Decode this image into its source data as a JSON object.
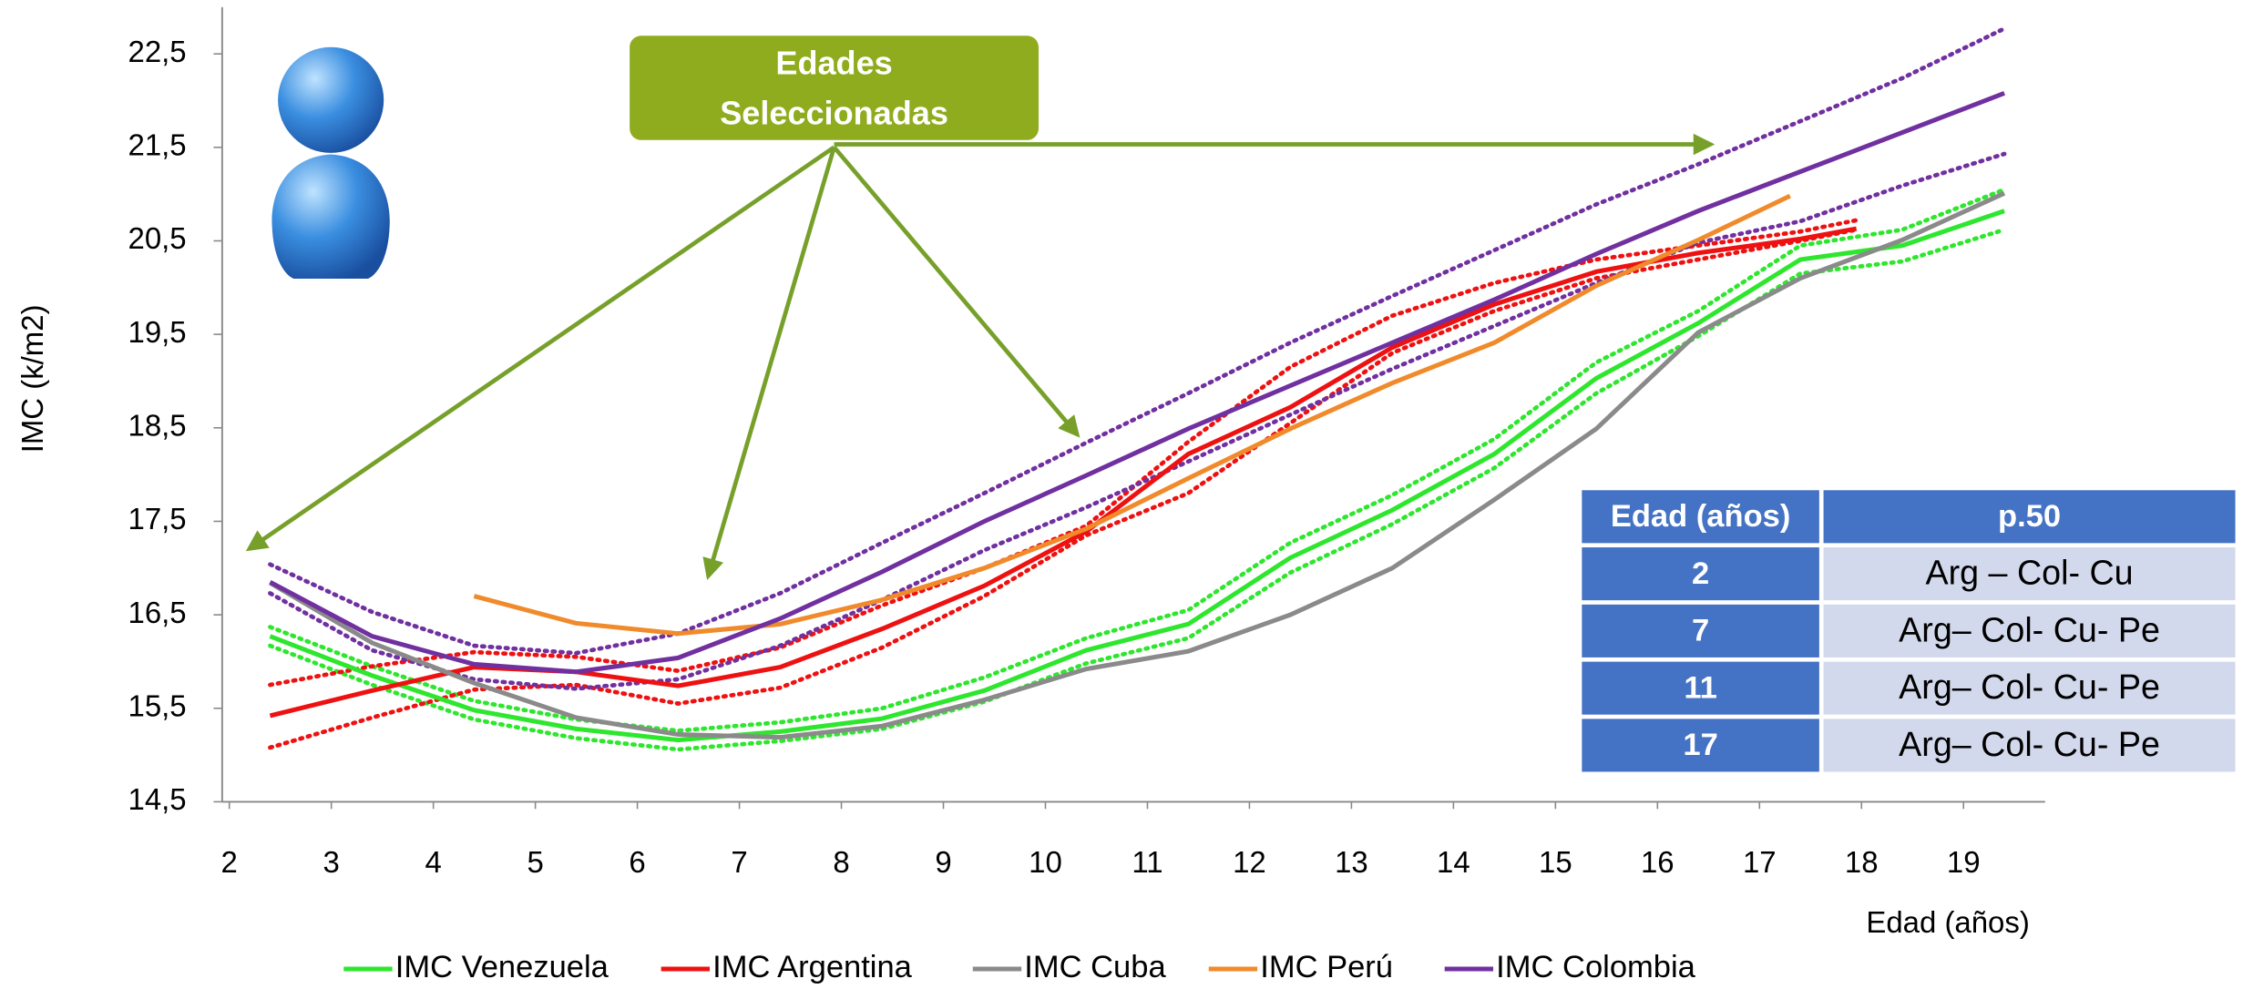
{
  "chart_data": {
    "type": "line",
    "y_label": "IMC (k/m2)",
    "x_label": "Edad (años)",
    "xlim": [
      1.93,
      19.8
    ],
    "ylim": [
      14.5,
      23
    ],
    "xticks": [
      2,
      3,
      4,
      5,
      6,
      7,
      8,
      9,
      10,
      11,
      12,
      13,
      14,
      15,
      16,
      17,
      18,
      19
    ],
    "yticks": [
      {
        "value": 14.5,
        "label": "14,5"
      },
      {
        "value": 15.5,
        "label": "15,5"
      },
      {
        "value": 16.5,
        "label": "16,5"
      },
      {
        "value": 17.5,
        "label": "17,5"
      },
      {
        "value": 18.5,
        "label": "18,5"
      },
      {
        "value": 19.5,
        "label": "19,5"
      },
      {
        "value": 20.5,
        "label": "20,5"
      },
      {
        "value": 21.5,
        "label": "21,5"
      },
      {
        "value": 22.5,
        "label": "22,5"
      }
    ],
    "grid": false,
    "legend": "bottom",
    "series": [
      {
        "name": "IMC Venezuela",
        "color": "#2ee62e",
        "x": [
          2.4,
          3.4,
          4.4,
          5.4,
          6.4,
          7.4,
          8.4,
          9.4,
          10.4,
          11.4,
          12.4,
          13.4,
          14.4,
          15.4,
          16.4,
          17.4,
          18.4,
          19.4
        ],
        "values": [
          16.27,
          15.85,
          15.48,
          15.28,
          15.16,
          15.25,
          15.39,
          15.69,
          16.12,
          16.4,
          17.11,
          17.62,
          18.22,
          19.03,
          19.62,
          20.3,
          20.45,
          20.82
        ]
      },
      {
        "name": "IMC Argentina",
        "color": "#ee1111",
        "x": [
          2.4,
          3.4,
          4.4,
          5.4,
          6.4,
          7.4,
          8.4,
          9.4,
          10.4,
          11.4,
          12.4,
          13.4,
          14.4,
          15.4,
          16.4,
          17.4,
          17.95
        ],
        "values": [
          15.42,
          15.69,
          15.94,
          15.89,
          15.74,
          15.94,
          16.35,
          16.81,
          17.39,
          18.22,
          18.72,
          19.36,
          19.82,
          20.17,
          20.37,
          20.52,
          20.63
        ]
      },
      {
        "name": "IMC Cuba",
        "color": "#8a8a8a",
        "x": [
          2.4,
          3.4,
          4.4,
          5.4,
          6.4,
          7.4,
          8.4,
          9.4,
          10.4,
          11.4,
          12.4,
          13.4,
          14.4,
          15.4,
          16.4,
          17.4,
          18.4,
          19.4
        ],
        "values": [
          16.84,
          16.2,
          15.77,
          15.4,
          15.22,
          15.19,
          15.31,
          15.59,
          15.92,
          16.11,
          16.5,
          17.0,
          17.73,
          18.49,
          19.52,
          20.1,
          20.51,
          21.01
        ]
      },
      {
        "name": "IMC Perú",
        "color": "#f08a2a",
        "x": [
          4.4,
          5.4,
          6.4,
          7.4,
          8.4,
          9.4,
          10.4,
          11.4,
          12.4,
          13.4,
          14.4,
          15.4,
          16.4,
          17.3
        ],
        "values": [
          16.7,
          16.41,
          16.3,
          16.4,
          16.66,
          17.0,
          17.42,
          17.96,
          18.49,
          18.98,
          19.41,
          20.02,
          20.51,
          20.98
        ]
      },
      {
        "name": "IMC Colombia",
        "color": "#7030a0",
        "x": [
          2.4,
          3.4,
          4.4,
          5.4,
          6.4,
          7.4,
          8.4,
          9.4,
          10.4,
          11.4,
          12.4,
          13.4,
          14.4,
          15.4,
          16.4,
          17.4,
          18.4,
          19.4
        ],
        "values": [
          16.85,
          16.27,
          15.97,
          15.89,
          16.04,
          16.46,
          16.96,
          17.5,
          17.99,
          18.49,
          18.95,
          19.41,
          19.87,
          20.36,
          20.82,
          21.24,
          21.66,
          22.08
        ]
      },
      {
        "color": "#2ee62e",
        "dash": true,
        "x": [
          2.4,
          3.4,
          4.4,
          5.4,
          6.4,
          7.4,
          8.4,
          9.4,
          10.4,
          11.4,
          12.4,
          13.4,
          14.4,
          15.4,
          16.4,
          17.4,
          18.4,
          19.4
        ],
        "values": [
          16.37,
          15.95,
          15.58,
          15.38,
          15.26,
          15.35,
          15.5,
          15.83,
          16.25,
          16.55,
          17.27,
          17.78,
          18.38,
          19.2,
          19.75,
          20.45,
          20.62,
          21.05
        ]
      },
      {
        "color": "#2ee62e",
        "dash": true,
        "x": [
          2.4,
          3.4,
          4.4,
          5.4,
          6.4,
          7.4,
          8.4,
          9.4,
          10.4,
          11.4,
          12.4,
          13.4,
          14.4,
          15.4,
          16.4,
          17.4,
          18.4,
          19.4
        ],
        "values": [
          16.17,
          15.75,
          15.38,
          15.18,
          15.06,
          15.15,
          15.28,
          15.57,
          15.98,
          16.25,
          16.95,
          17.47,
          18.07,
          18.87,
          19.48,
          20.15,
          20.28,
          20.62
        ]
      },
      {
        "color": "#ee1111",
        "dash": true,
        "x": [
          2.4,
          3.4,
          4.4,
          5.4,
          6.4,
          7.4,
          8.4,
          9.4,
          10.4,
          11.4,
          12.4,
          13.4,
          14.4,
          15.4,
          16.4,
          17.4,
          17.95
        ],
        "values": [
          15.75,
          15.95,
          16.1,
          16.05,
          15.9,
          16.15,
          16.6,
          17.0,
          17.45,
          18.35,
          19.15,
          19.7,
          20.05,
          20.3,
          20.45,
          20.6,
          20.72
        ]
      },
      {
        "color": "#ee1111",
        "dash": true,
        "x": [
          2.4,
          3.4,
          4.4,
          5.4,
          6.4,
          7.4,
          8.4,
          9.4,
          10.4,
          11.4,
          12.4,
          13.4,
          14.4,
          15.4,
          16.4,
          17.4,
          17.95
        ],
        "values": [
          15.08,
          15.4,
          15.7,
          15.75,
          15.55,
          15.72,
          16.15,
          16.7,
          17.35,
          17.8,
          18.55,
          19.3,
          19.75,
          20.1,
          20.3,
          20.5,
          20.62
        ]
      },
      {
        "color": "#7030a0",
        "dash": true,
        "x": [
          2.4,
          3.4,
          4.4,
          5.4,
          6.4,
          7.4,
          8.4,
          9.4,
          10.4,
          11.4,
          12.4,
          13.4,
          14.4,
          15.4,
          16.4,
          17.4,
          18.4,
          19.4
        ],
        "values": [
          17.04,
          16.53,
          16.17,
          16.09,
          16.3,
          16.73,
          17.27,
          17.8,
          18.34,
          18.87,
          19.41,
          19.91,
          20.4,
          20.89,
          21.32,
          21.78,
          22.24,
          22.77
        ]
      },
      {
        "color": "#7030a0",
        "dash": true,
        "x": [
          2.4,
          3.4,
          4.4,
          5.4,
          6.4,
          7.4,
          8.4,
          9.4,
          10.4,
          11.4,
          12.4,
          13.4,
          14.4,
          15.4,
          16.4,
          17.4,
          18.4,
          19.4
        ],
        "values": [
          16.73,
          16.12,
          15.81,
          15.71,
          15.81,
          16.17,
          16.66,
          17.19,
          17.65,
          18.14,
          18.64,
          19.13,
          19.59,
          20.05,
          20.48,
          20.71,
          21.09,
          21.43
        ]
      }
    ],
    "annotation": [
      "Edades",
      "Seleccionadas"
    ],
    "table": {
      "header": [
        "Edad (años)",
        "p.50"
      ],
      "rows": [
        [
          2,
          "Arg – Col- Cu"
        ],
        [
          7,
          "Arg– Col- Cu- Pe"
        ],
        [
          11,
          "Arg– Col- Cu- Pe"
        ],
        [
          17,
          "Arg– Col- Cu- Pe"
        ]
      ]
    }
  }
}
